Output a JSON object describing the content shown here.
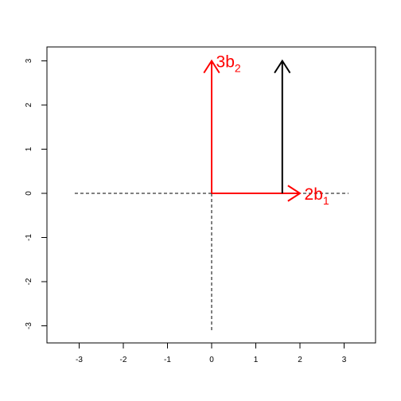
{
  "chart_data": {
    "type": "vector_plot",
    "title": "",
    "xlabel": "",
    "ylabel": "",
    "xlim": [
      -3.3,
      3.7
    ],
    "ylim": [
      -3.3,
      3.3
    ],
    "x_ticks": [
      -3,
      -2,
      -1,
      0,
      1,
      2,
      3
    ],
    "y_ticks": [
      -3,
      -2,
      -1,
      0,
      1,
      2,
      3
    ],
    "x_tick_labels": [
      "-3",
      "-2",
      "-1",
      "0",
      "1",
      "2",
      "3"
    ],
    "y_tick_labels": [
      "-3",
      "-2",
      "-1",
      "0",
      "1",
      "2",
      "3"
    ],
    "reference_lines": [
      {
        "name": "horizontal-axis-line",
        "from": [
          -3.1,
          0
        ],
        "to": [
          3.1,
          0
        ],
        "style": "dashed",
        "color": "#000000"
      },
      {
        "name": "vertical-axis-line",
        "from": [
          0,
          -3.1
        ],
        "to": [
          0,
          0
        ],
        "style": "dashed",
        "color": "#000000"
      }
    ],
    "vectors": [
      {
        "name": "vector-2b1",
        "from": [
          0,
          0
        ],
        "to": [
          2,
          0
        ],
        "color": "#ff0000",
        "label_main": "2b",
        "label_sub": "1",
        "label_at": [
          2.1,
          0
        ]
      },
      {
        "name": "vector-3b2",
        "from": [
          0,
          0
        ],
        "to": [
          0,
          3
        ],
        "color": "#ff0000",
        "label_main": "3b",
        "label_sub": "2",
        "label_at": [
          0.1,
          3
        ]
      },
      {
        "name": "vector-black",
        "from": [
          1.6,
          0
        ],
        "to": [
          1.6,
          3
        ],
        "color": "#000000",
        "label_main": "",
        "label_sub": "",
        "label_at": null
      }
    ],
    "grid": false
  }
}
